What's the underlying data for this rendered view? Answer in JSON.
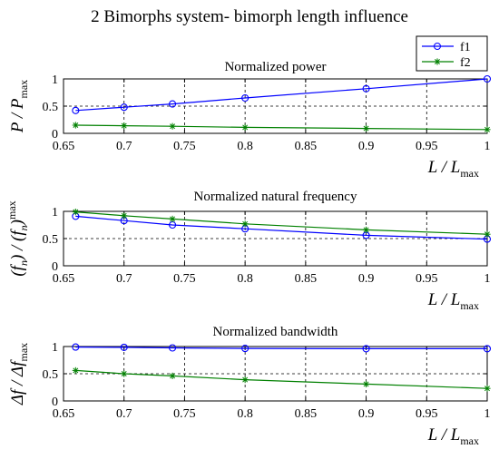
{
  "figure": {
    "title": "2 Bimorphs system- bimorph length influence"
  },
  "colors": {
    "f1": "#0000ff",
    "f2": "#008000",
    "axis": "#000000",
    "grid": "#000000"
  },
  "legend": {
    "placement": "top-right of first subplot",
    "entries": [
      {
        "name": "f1",
        "color": "#0000ff",
        "marker": "circle"
      },
      {
        "name": "f2",
        "color": "#008000",
        "marker": "asterisk"
      }
    ]
  },
  "chart_data": [
    {
      "type": "line",
      "title": "Normalized power",
      "ylabel_main": "P / P",
      "ylabel_sub": "max",
      "xlabel_main": "L / L",
      "xlabel_sub": "max",
      "xlim": [
        0.65,
        1.0
      ],
      "ylim": [
        0,
        1
      ],
      "xticks": [
        "0.65",
        "0.7",
        "0.75",
        "0.8",
        "0.85",
        "0.9",
        "0.95",
        "1"
      ],
      "yticks": [
        "0",
        "0.5",
        "1"
      ],
      "grid": true,
      "x": [
        0.66,
        0.7,
        0.74,
        0.8,
        0.9,
        1.0
      ],
      "series": [
        {
          "name": "f1",
          "values": [
            0.42,
            0.48,
            0.54,
            0.65,
            0.82,
            1.0
          ]
        },
        {
          "name": "f2",
          "values": [
            0.15,
            0.14,
            0.13,
            0.11,
            0.09,
            0.07
          ]
        }
      ]
    },
    {
      "type": "line",
      "title": "Normalized natural frequency",
      "ylabel_main": "(f",
      "ylabel_mid": ") / (f",
      "ylabel_tail": ")",
      "ylabel_n": "n",
      "ylabel_sub": "max",
      "xlabel_main": "L / L",
      "xlabel_sub": "max",
      "xlim": [
        0.65,
        1.0
      ],
      "ylim": [
        0,
        1
      ],
      "xticks": [
        "0.65",
        "0.7",
        "0.75",
        "0.8",
        "0.85",
        "0.9",
        "0.95",
        "1"
      ],
      "yticks": [
        "0",
        "0.5",
        "1"
      ],
      "grid": true,
      "x": [
        0.66,
        0.7,
        0.74,
        0.8,
        0.9,
        1.0
      ],
      "series": [
        {
          "name": "f1",
          "values": [
            0.91,
            0.83,
            0.75,
            0.68,
            0.56,
            0.49
          ]
        },
        {
          "name": "f2",
          "values": [
            0.99,
            0.92,
            0.86,
            0.77,
            0.66,
            0.58
          ]
        }
      ]
    },
    {
      "type": "line",
      "title": "Normalized bandwidth",
      "ylabel_main": "Δf / Δf",
      "ylabel_sub": "max",
      "xlabel_main": "L / L",
      "xlabel_sub": "max",
      "xlim": [
        0.65,
        1.0
      ],
      "ylim": [
        0,
        1
      ],
      "xticks": [
        "0.65",
        "0.7",
        "0.75",
        "0.8",
        "0.85",
        "0.9",
        "0.95",
        "1"
      ],
      "yticks": [
        "0",
        "0.5",
        "1"
      ],
      "grid": true,
      "x": [
        0.66,
        0.7,
        0.74,
        0.8,
        0.9,
        1.0
      ],
      "series": [
        {
          "name": "f1",
          "values": [
            0.99,
            0.985,
            0.975,
            0.965,
            0.96,
            0.96
          ]
        },
        {
          "name": "f2",
          "values": [
            0.56,
            0.5,
            0.46,
            0.39,
            0.31,
            0.23
          ]
        }
      ]
    }
  ]
}
